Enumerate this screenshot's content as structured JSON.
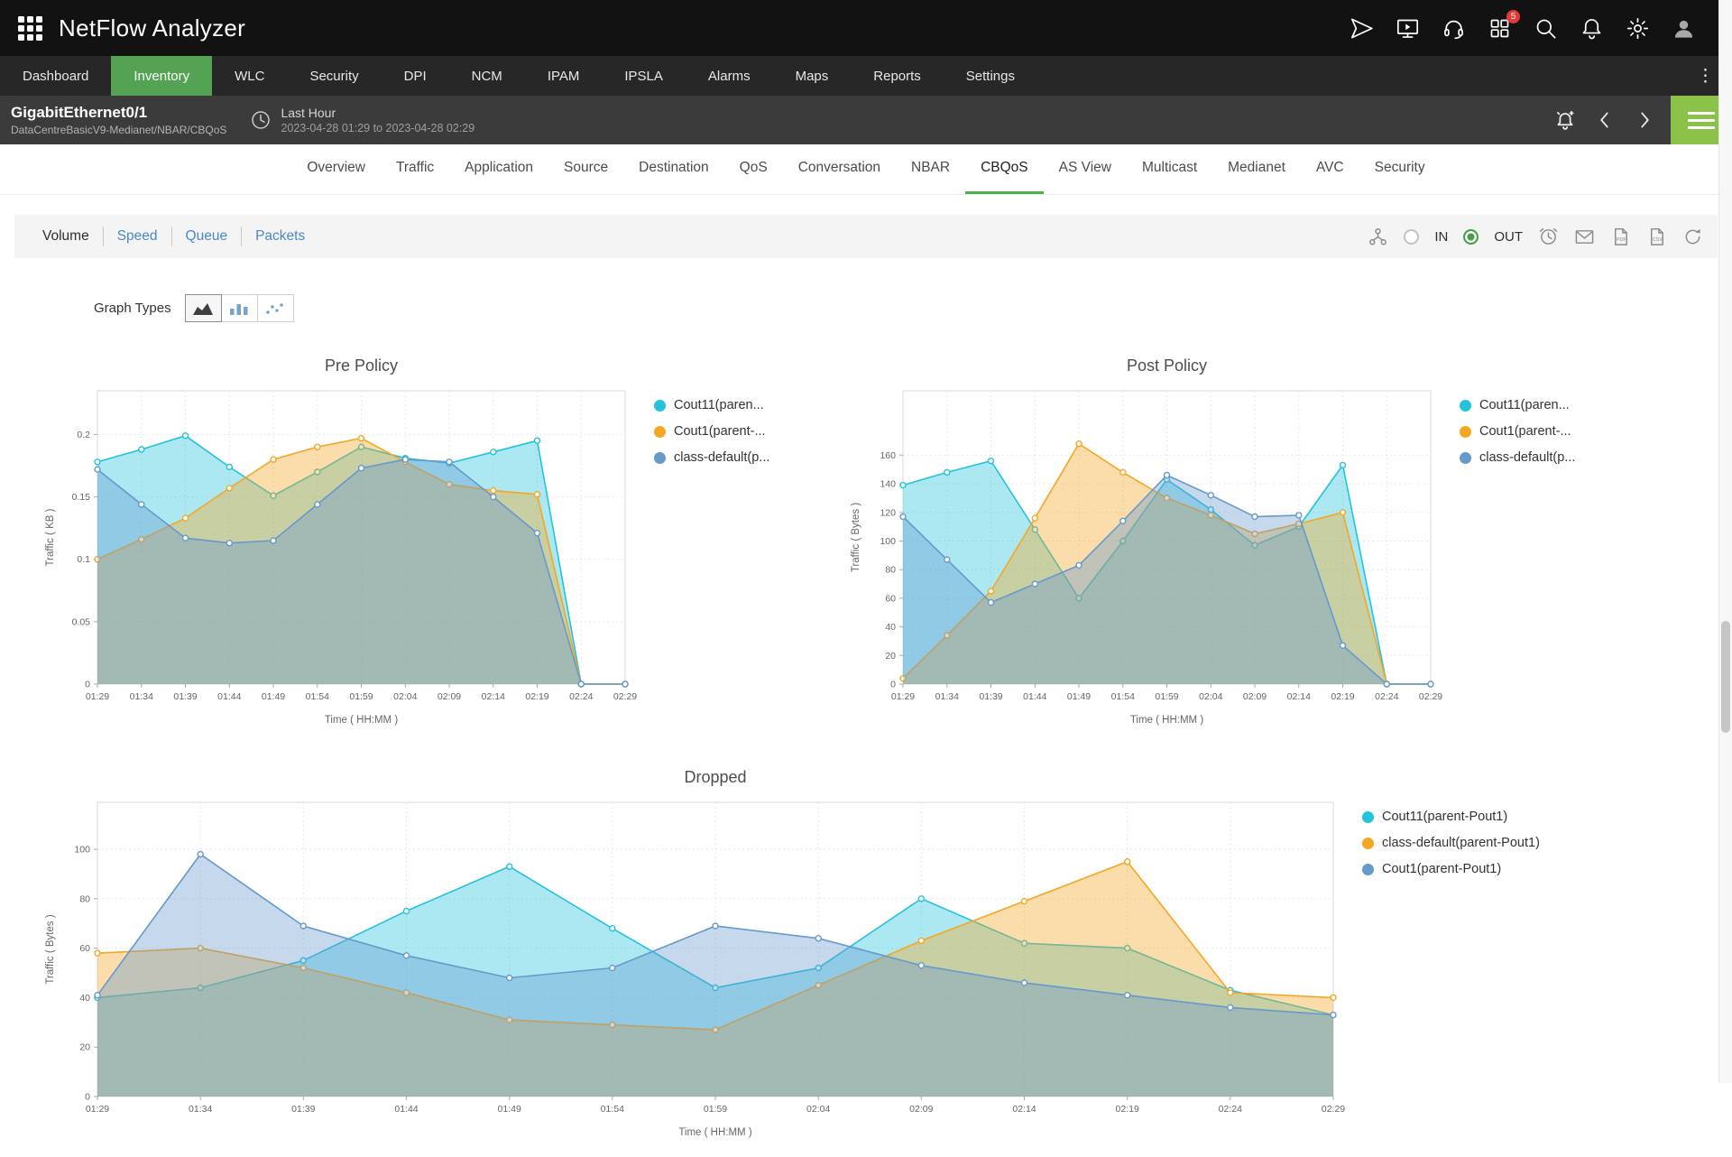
{
  "app": {
    "title": "NetFlow Analyzer"
  },
  "topbar": {
    "badge": "5"
  },
  "icons": {
    "topbar": [
      "app-grid-icon",
      "getting-started-icon",
      "screen-demo-icon",
      "support-icon",
      "apps-icon",
      "search-icon",
      "notifications-icon",
      "settings-icon",
      "user-avatar"
    ],
    "subheader": [
      "clock-icon",
      "alarm-icon",
      "chevron-left-icon",
      "chevron-right-icon",
      "menu-icon"
    ],
    "toolbar": [
      "topology-icon",
      "time-period-icon",
      "email-icon",
      "pdf-export-icon",
      "csv-export-icon",
      "refresh-icon"
    ],
    "graph_types": [
      "area-chart-icon",
      "bar-chart-icon",
      "scatter-chart-icon"
    ],
    "nav": [
      "more-vertical-icon"
    ]
  },
  "nav": {
    "items": [
      "Dashboard",
      "Inventory",
      "WLC",
      "Security",
      "DPI",
      "NCM",
      "IPAM",
      "IPSLA",
      "Alarms",
      "Maps",
      "Reports",
      "Settings"
    ],
    "active": "Inventory"
  },
  "subheader": {
    "title": "GigabitEthernet0/1",
    "subtitle": "DataCentreBasicV9-Medianet/NBAR/CBQoS",
    "period_label": "Last Hour",
    "period_range": "2023-04-28 01:29 to 2023-04-28 02:29"
  },
  "tabs": {
    "items": [
      "Overview",
      "Traffic",
      "Application",
      "Source",
      "Destination",
      "QoS",
      "Conversation",
      "NBAR",
      "CBQoS",
      "AS View",
      "Multicast",
      "Medianet",
      "AVC",
      "Security"
    ],
    "active": "CBQoS"
  },
  "toolbar": {
    "views": [
      "Volume",
      "Speed",
      "Queue",
      "Packets"
    ],
    "active_view": "Volume",
    "in_label": "IN",
    "out_label": "OUT",
    "in_selected": false,
    "out_selected": true
  },
  "graph_types": {
    "label": "Graph Types",
    "active": "area-chart"
  },
  "colors": {
    "accent_green": "#54a354",
    "tab_underline_green": "#4caf50",
    "hamburger_green": "#8bc34a",
    "link_blue": "#4a89c8",
    "series_cyan": "#25c2dc",
    "series_orange": "#f5a623",
    "series_blue": "#6699cc"
  },
  "chart_data": [
    {
      "type": "area",
      "title": "Pre Policy",
      "xlabel": "Time ( HH:MM )",
      "ylabel": "Traffic ( KB )",
      "x": [
        "01:29",
        "01:34",
        "01:39",
        "01:44",
        "01:49",
        "01:54",
        "01:59",
        "02:04",
        "02:09",
        "02:14",
        "02:19",
        "02:24",
        "02:29"
      ],
      "ylim": [
        0,
        0.235
      ],
      "yticks": [
        0,
        0.05,
        0.1,
        0.15,
        0.2
      ],
      "grid": true,
      "legend_position": "right",
      "series": [
        {
          "name": "Cout11(paren...",
          "color": "#25c2dc",
          "values": [
            0.178,
            0.188,
            0.199,
            0.174,
            0.151,
            0.17,
            0.19,
            0.181,
            0.177,
            0.186,
            0.195,
            0,
            0
          ]
        },
        {
          "name": "Cout1(parent-...",
          "color": "#f5a623",
          "values": [
            0.1,
            0.116,
            0.133,
            0.157,
            0.18,
            0.19,
            0.197,
            0.178,
            0.16,
            0.155,
            0.152,
            0,
            0
          ]
        },
        {
          "name": "class-default(p...",
          "color": "#6699cc",
          "values": [
            0.172,
            0.144,
            0.117,
            0.113,
            0.115,
            0.144,
            0.173,
            0.18,
            0.178,
            0.15,
            0.121,
            0,
            0
          ]
        }
      ]
    },
    {
      "type": "area",
      "title": "Post Policy",
      "xlabel": "Time ( HH:MM )",
      "ylabel": "Traffic ( Bytes )",
      "x": [
        "01:29",
        "01:34",
        "01:39",
        "01:44",
        "01:49",
        "01:54",
        "01:59",
        "02:04",
        "02:09",
        "02:14",
        "02:19",
        "02:24",
        "02:29"
      ],
      "ylim": [
        0,
        205
      ],
      "yticks": [
        0,
        20,
        40,
        60,
        80,
        100,
        120,
        140,
        160
      ],
      "grid": true,
      "legend_position": "right",
      "series": [
        {
          "name": "Cout11(paren...",
          "color": "#25c2dc",
          "values": [
            139,
            148,
            156,
            108,
            60,
            100,
            143,
            122,
            97,
            110,
            153,
            0,
            0
          ]
        },
        {
          "name": "Cout1(parent-...",
          "color": "#f5a623",
          "values": [
            4,
            34,
            65,
            116,
            168,
            148,
            130,
            118,
            105,
            112,
            120,
            0,
            0
          ]
        },
        {
          "name": "class-default(p...",
          "color": "#6699cc",
          "values": [
            117,
            87,
            57,
            70,
            83,
            114,
            146,
            132,
            117,
            118,
            27,
            0,
            0
          ]
        }
      ]
    },
    {
      "type": "area",
      "title": "Dropped",
      "xlabel": "Time ( HH:MM )",
      "ylabel": "Traffic ( Bytes )",
      "x": [
        "01:29",
        "01:34",
        "01:39",
        "01:44",
        "01:49",
        "01:54",
        "01:59",
        "02:04",
        "02:09",
        "02:14",
        "02:19",
        "02:24",
        "02:29"
      ],
      "ylim": [
        0,
        119
      ],
      "yticks": [
        0,
        20,
        40,
        60,
        80,
        100
      ],
      "grid": true,
      "legend_position": "right",
      "series": [
        {
          "name": "Cout11(parent-Pout1)",
          "color": "#25c2dc",
          "values": [
            40,
            44,
            55,
            75,
            93,
            68,
            44,
            52,
            80,
            62,
            60,
            43,
            33
          ]
        },
        {
          "name": "class-default(parent-Pout1)",
          "color": "#f5a623",
          "values": [
            58,
            60,
            52,
            42,
            31,
            29,
            27,
            45,
            63,
            79,
            95,
            42,
            40
          ]
        },
        {
          "name": "Cout1(parent-Pout1)",
          "color": "#6699cc",
          "values": [
            41,
            98,
            69,
            57,
            48,
            52,
            69,
            64,
            53,
            46,
            41,
            36,
            33
          ]
        }
      ]
    }
  ]
}
